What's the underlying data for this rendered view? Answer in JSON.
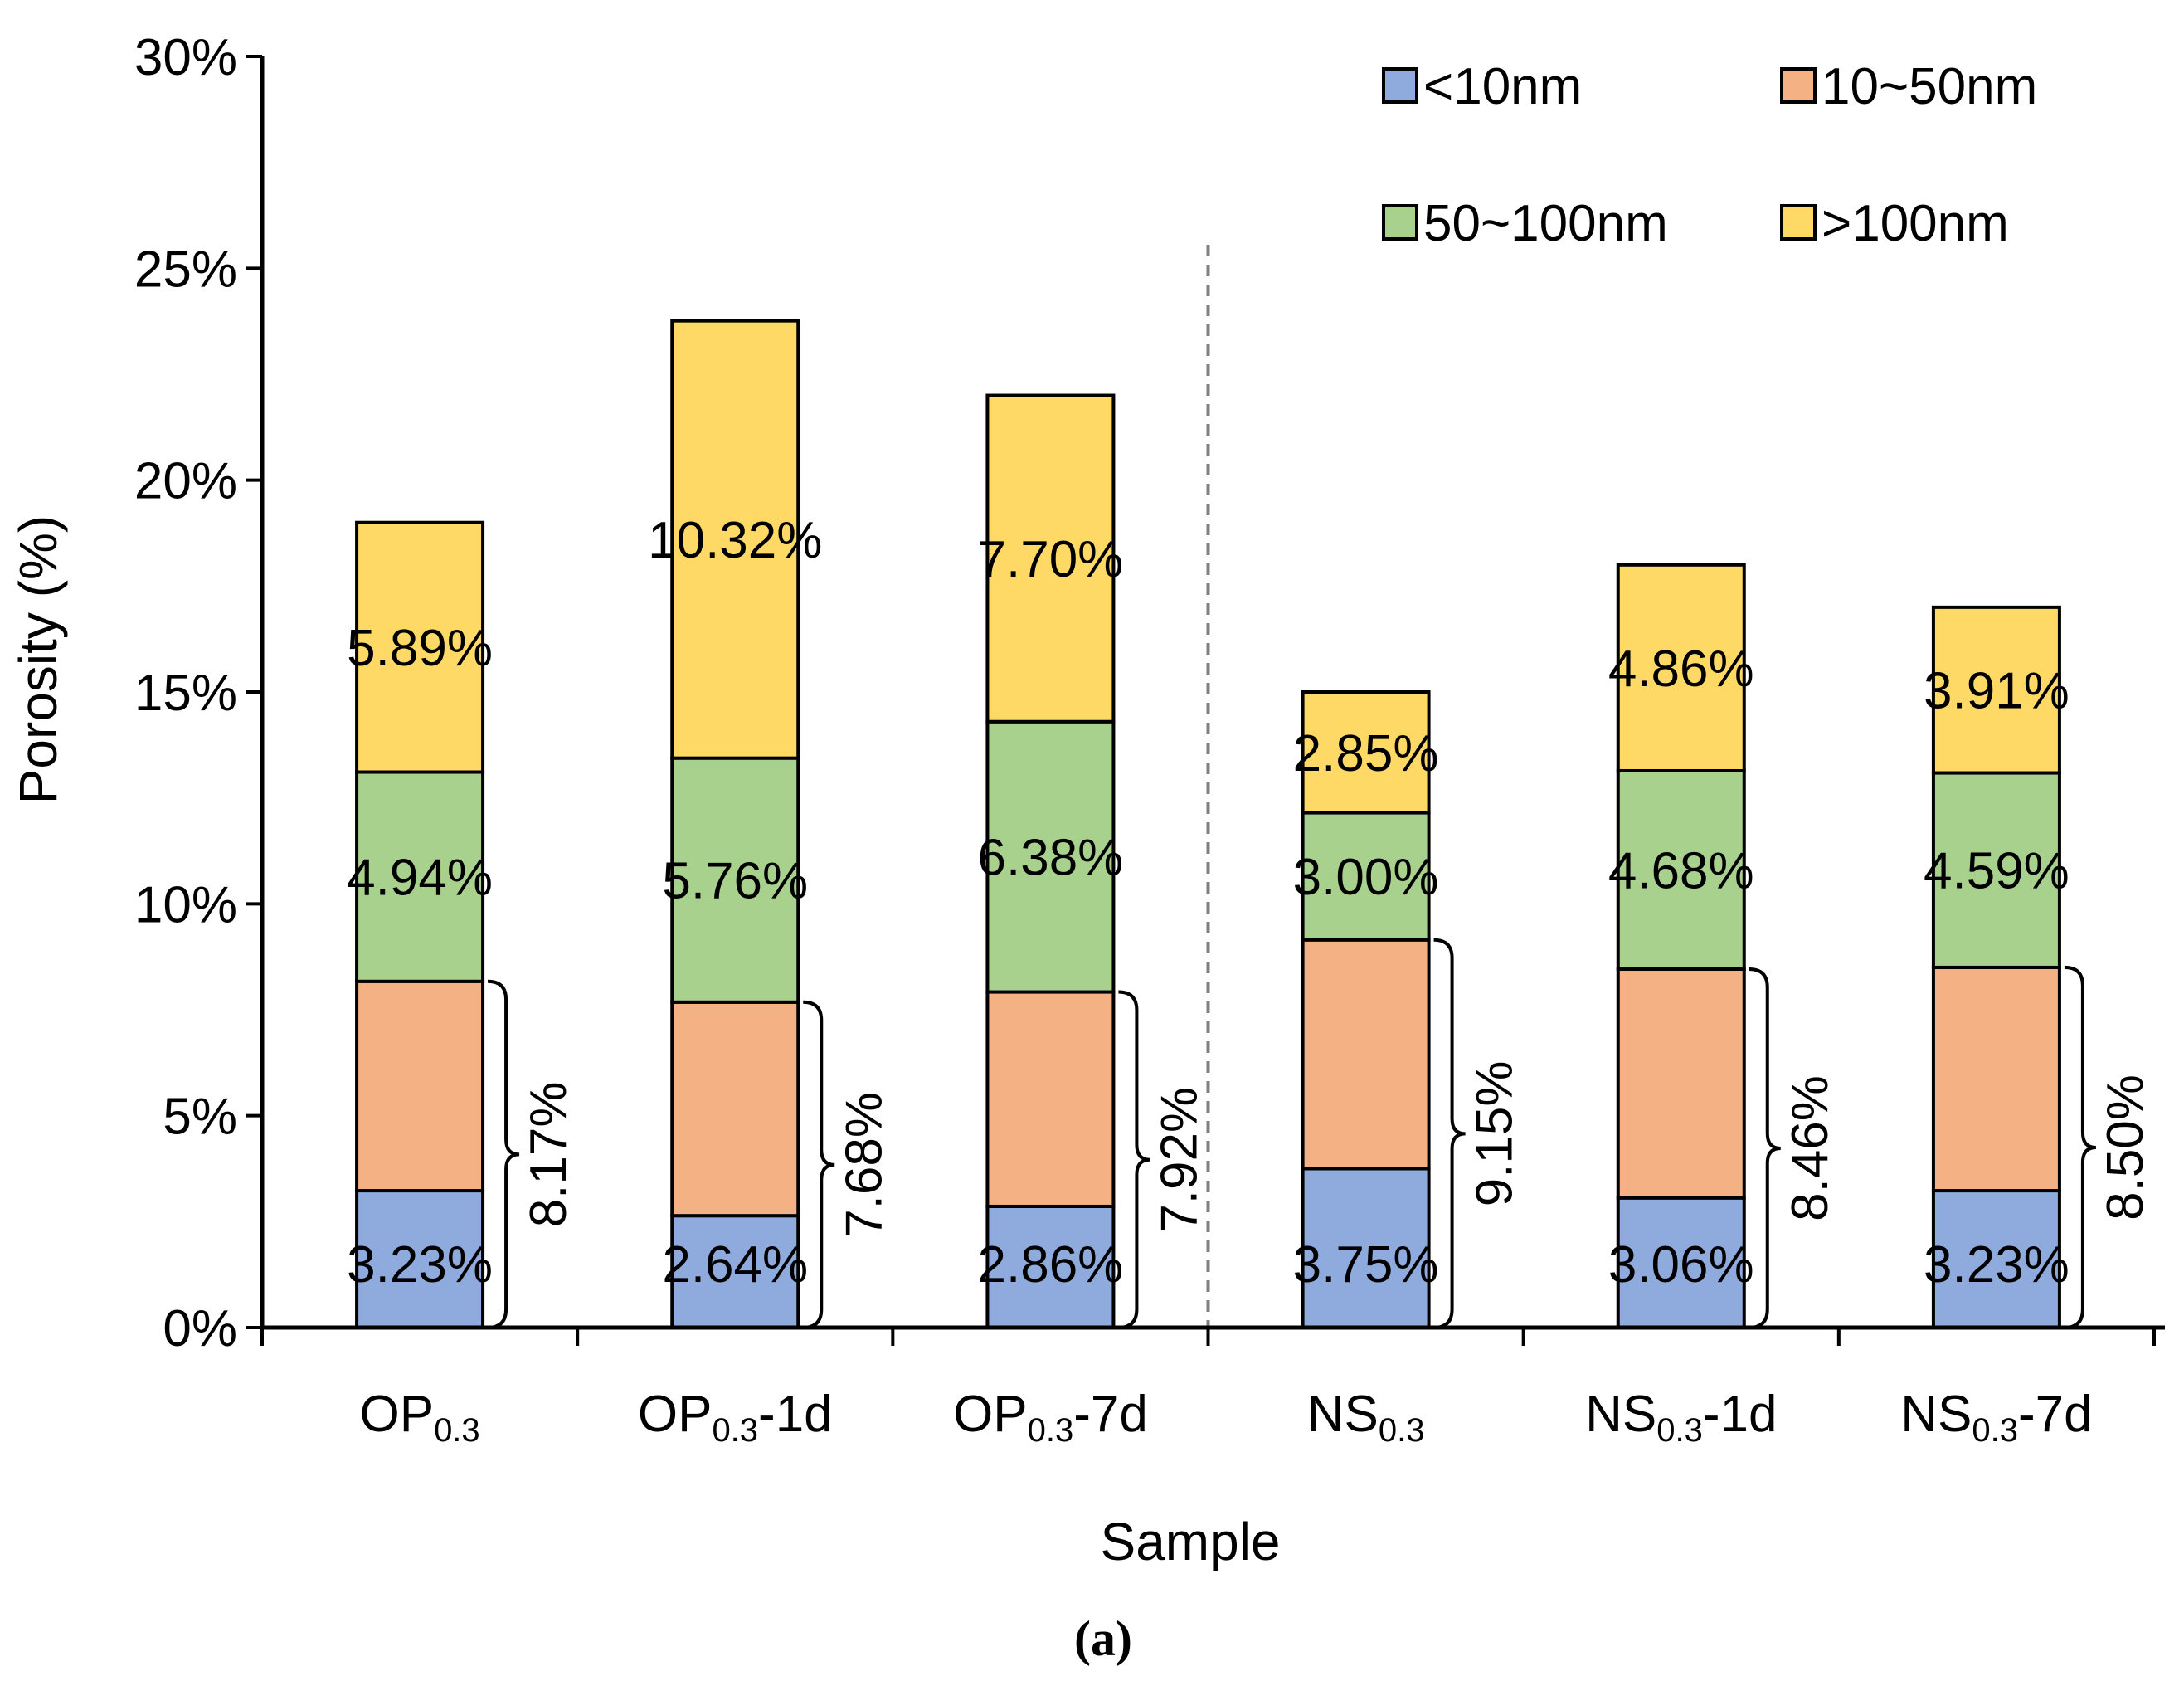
{
  "chart_data": {
    "type": "bar",
    "stacked": true,
    "xlabel": "Sample",
    "ylabel": "Porosity (%)",
    "ylim": [
      0,
      30
    ],
    "yticks": [
      "0%",
      "5%",
      "10%",
      "15%",
      "20%",
      "25%",
      "30%"
    ],
    "caption": "(a)",
    "categories": [
      {
        "main": "OP",
        "sub": "0.3",
        "suffix": ""
      },
      {
        "main": "OP",
        "sub": "0.3",
        "suffix": "-1d"
      },
      {
        "main": "OP",
        "sub": "0.3",
        "suffix": "-7d"
      },
      {
        "main": "NS",
        "sub": "0.3",
        "suffix": ""
      },
      {
        "main": "NS",
        "sub": "0.3",
        "suffix": "-1d"
      },
      {
        "main": "NS",
        "sub": "0.3",
        "suffix": "-7d"
      }
    ],
    "series": [
      {
        "name": "<10nm",
        "color": "#8faadc",
        "values": [
          3.23,
          2.64,
          2.86,
          3.75,
          3.06,
          3.23
        ],
        "labels": [
          "3.23%",
          "2.64%",
          "2.86%",
          "3.75%",
          "3.06%",
          "3.23%"
        ]
      },
      {
        "name": "10~50nm",
        "color": "#f4b183",
        "values": [
          4.94,
          5.04,
          5.06,
          5.4,
          5.4,
          5.27
        ],
        "labels": null
      },
      {
        "name": "50~100nm",
        "color": "#a9d18e",
        "values": [
          4.94,
          5.76,
          6.38,
          3.0,
          4.68,
          4.59
        ],
        "labels": [
          "4.94%",
          "5.76%",
          "6.38%",
          "3.00%",
          "4.68%",
          "4.59%"
        ]
      },
      {
        "name": ">100nm",
        "color": "#ffd966",
        "values": [
          5.89,
          10.32,
          7.7,
          2.85,
          4.86,
          3.91
        ],
        "labels": [
          "5.89%",
          "10.32%",
          "7.70%",
          "2.85%",
          "4.86%",
          "3.91%"
        ]
      }
    ],
    "brace_labels": [
      "8.17%",
      "7.68%",
      "7.92%",
      "9.15%",
      "8.46%",
      "8.50%"
    ],
    "legend": {
      "position": "top-right",
      "columns": 2
    },
    "divider_after_category": 2
  }
}
